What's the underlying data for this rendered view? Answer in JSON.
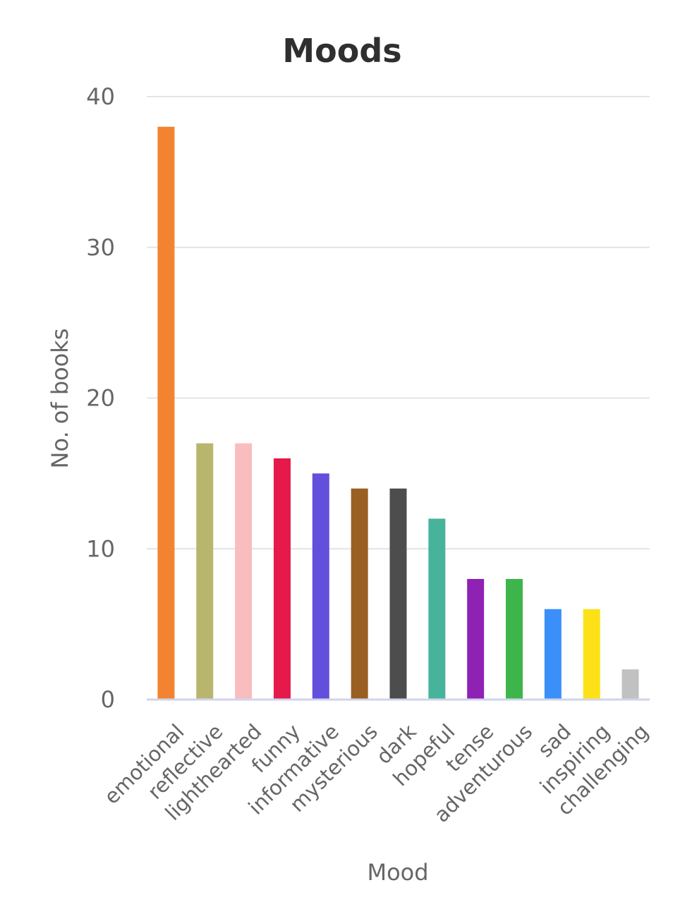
{
  "chart_data": {
    "type": "bar",
    "title": "Moods",
    "xlabel": "Mood",
    "ylabel": "No. of books",
    "ylim": [
      0,
      40
    ],
    "yticks": [
      "0",
      "10",
      "20",
      "30",
      "40"
    ],
    "grid": true,
    "legend": "none",
    "categories": [
      "emotional",
      "reflective",
      "lighthearted",
      "funny",
      "informative",
      "mysterious",
      "dark",
      "hopeful",
      "tense",
      "adventurous",
      "sad",
      "inspiring",
      "challenging"
    ],
    "values": [
      38,
      17,
      17,
      16,
      15,
      14,
      14,
      12,
      8,
      8,
      6,
      6,
      2
    ],
    "colors": [
      "#f38330",
      "#b8b66e",
      "#f9bdbd",
      "#e5194a",
      "#624fdc",
      "#9a5f23",
      "#4d4d4d",
      "#48b39b",
      "#8d22b5",
      "#3db54b",
      "#3b8ff8",
      "#fde118",
      "#c1c1c1"
    ]
  }
}
